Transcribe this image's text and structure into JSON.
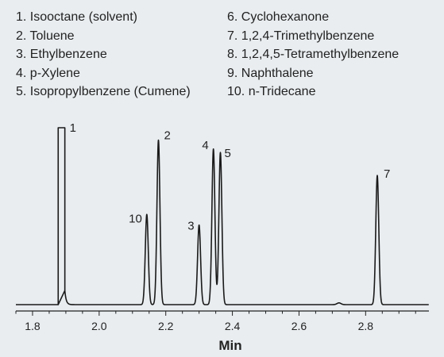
{
  "legend": {
    "left": [
      {
        "num": "1.",
        "name": "Isooctane (solvent)"
      },
      {
        "num": "2.",
        "name": "Toluene"
      },
      {
        "num": "3.",
        "name": "Ethylbenzene"
      },
      {
        "num": "4.",
        "name": "p-Xylene"
      },
      {
        "num": "5.",
        "name": "Isopropylbenzene (Cumene)"
      }
    ],
    "right": [
      {
        "num": "6.",
        "name": "Cyclohexanone"
      },
      {
        "num": "7.",
        "name": "1,2,4-Trimethylbenzene"
      },
      {
        "num": "8.",
        "name": "1,2,4,5-Tetramethylbenzene"
      },
      {
        "num": "9.",
        "name": "Naphthalene"
      },
      {
        "num": "10.",
        "name": " n-Tridecane"
      }
    ]
  },
  "chart_data": {
    "type": "line",
    "title": "",
    "xlabel": "Min",
    "ylabel": "",
    "xlim": [
      1.75,
      2.99
    ],
    "ylim": [
      0,
      1
    ],
    "x_ticks": [
      1.8,
      2.0,
      2.2,
      2.4,
      2.6,
      2.8
    ],
    "x_tick_labels": [
      "1.8",
      "2.0",
      "2.2",
      "2.4",
      "2.6",
      "2.8"
    ],
    "grid": false,
    "line_color": "#1a1a1a",
    "baseline": 0.0,
    "solvent_peak": {
      "label": "1",
      "start": 1.877,
      "end": 1.897,
      "height": 1.0
    },
    "peaks": [
      {
        "label": "10",
        "rt": 2.143,
        "height": 0.51
      },
      {
        "label": "2",
        "rt": 2.178,
        "height": 0.93
      },
      {
        "label": "3",
        "rt": 2.3,
        "height": 0.45
      },
      {
        "label": "4",
        "rt": 2.343,
        "height": 0.88
      },
      {
        "label": "5",
        "rt": 2.364,
        "height": 0.86
      },
      {
        "label": "7",
        "rt": 2.835,
        "height": 0.73
      }
    ],
    "minor_bumps": [
      {
        "rt": 2.72,
        "height": 0.01
      }
    ]
  }
}
